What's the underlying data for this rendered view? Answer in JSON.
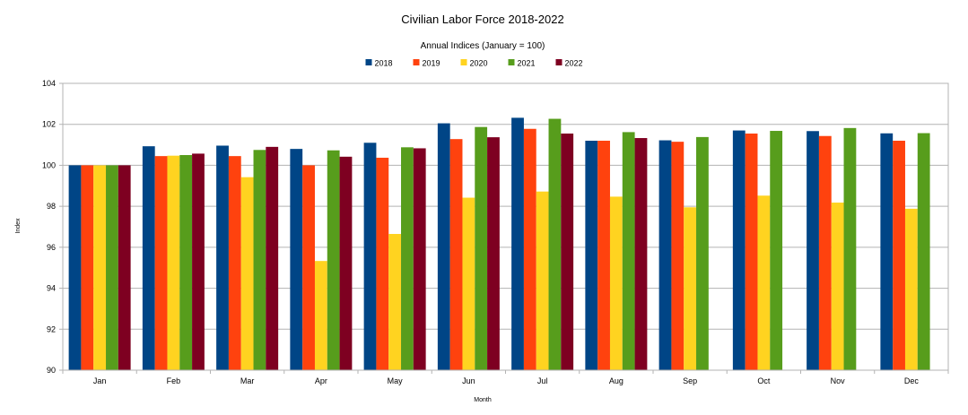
{
  "chart_data": {
    "type": "bar",
    "title": "Civilian Labor Force 2018-2022",
    "subtitle": "Annual Indices (January = 100)",
    "xlabel": "Month",
    "ylabel": "Index",
    "ylim": [
      90,
      104
    ],
    "yticks": [
      "90",
      "92",
      "94",
      "96",
      "98",
      "100",
      "102",
      "104"
    ],
    "grid": true,
    "legend": "top-center",
    "categories": [
      "Jan",
      "Feb",
      "Mar",
      "Apr",
      "May",
      "Jun",
      "Jul",
      "Aug",
      "Sep",
      "Oct",
      "Nov",
      "Dec"
    ],
    "series": [
      {
        "name": "2018",
        "color": "#004586",
        "values": [
          100,
          100.93,
          100.96,
          100.8,
          101.1,
          102.05,
          102.32,
          101.2,
          101.22,
          101.7,
          101.67,
          101.56
        ]
      },
      {
        "name": "2019",
        "color": "#ff420e",
        "values": [
          100,
          100.45,
          100.45,
          100.0,
          100.37,
          101.28,
          101.78,
          101.2,
          101.15,
          101.55,
          101.43,
          101.2
        ]
      },
      {
        "name": "2020",
        "color": "#ffd320",
        "values": [
          100,
          100.47,
          99.42,
          95.33,
          96.65,
          98.42,
          98.72,
          98.47,
          97.95,
          98.52,
          98.18,
          97.88
        ]
      },
      {
        "name": "2021",
        "color": "#579d1c",
        "values": [
          100,
          100.5,
          100.75,
          100.73,
          100.88,
          101.87,
          102.27,
          101.62,
          101.38,
          101.68,
          101.82,
          101.57
        ]
      },
      {
        "name": "2022",
        "color": "#7e0021",
        "values": [
          100,
          100.57,
          100.9,
          100.42,
          100.83,
          101.37,
          101.55,
          101.33,
          null,
          null,
          null,
          null
        ]
      }
    ]
  }
}
